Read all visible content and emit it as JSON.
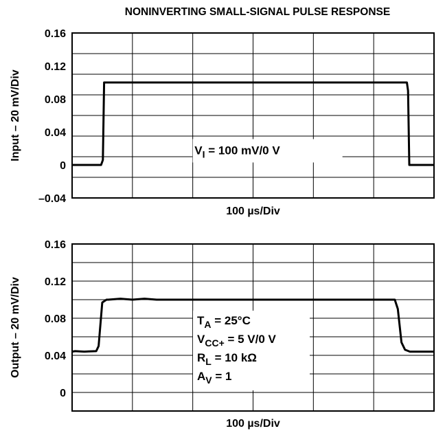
{
  "title": "NONINVERTING SMALL-SIGNAL PULSE RESPONSE",
  "chart_data": [
    {
      "type": "line",
      "name": "input",
      "ylabel": "Input – 20 mV/Div",
      "xlabel": "100 µs/Div",
      "xlim": [
        0,
        600
      ],
      "ylim": [
        -0.04,
        0.16
      ],
      "y_tick_labels": [
        "0.16",
        "0.12",
        "0.08",
        "0.04",
        "0",
        "–0.04"
      ],
      "y_tick_values": [
        0.16,
        0.12,
        0.08,
        0.04,
        0,
        -0.04
      ],
      "annotation": {
        "base": "V",
        "sub": "I",
        "rest": " = 100 mV/0 V"
      },
      "x": [
        0,
        48,
        51,
        53,
        555,
        557,
        559,
        600
      ],
      "y": [
        0,
        0,
        0.006,
        0.1,
        0.1,
        0.09,
        0,
        0
      ]
    },
    {
      "type": "line",
      "name": "output",
      "ylabel": "Output – 20 mV/Div",
      "xlabel": "100 µs/Div",
      "xlim": [
        0,
        600
      ],
      "ylim": [
        -0.02,
        0.16
      ],
      "y_tick_labels": [
        "0.16",
        "0.12",
        "0.08",
        "0.04",
        "0"
      ],
      "y_tick_values": [
        0.16,
        0.12,
        0.08,
        0.04,
        0
      ],
      "annotation_lines": [
        {
          "base": "T",
          "sub": "A",
          "rest": " = 25°C"
        },
        {
          "base": "V",
          "sub": "CC+",
          "rest": " = 5 V/0 V"
        },
        {
          "base": "R",
          "sub": "L",
          "rest": " = 10 kΩ"
        },
        {
          "base": "A",
          "sub": "V",
          "rest": " = 1"
        }
      ],
      "x": [
        0,
        5,
        20,
        40,
        44,
        50,
        57,
        60,
        80,
        100,
        120,
        140,
        200,
        300,
        400,
        535,
        540,
        546,
        552,
        560,
        600
      ],
      "y": [
        0.044,
        0.0445,
        0.044,
        0.0445,
        0.05,
        0.097,
        0.1,
        0.1,
        0.101,
        0.1,
        0.101,
        0.1,
        0.1,
        0.1,
        0.1,
        0.1,
        0.09,
        0.054,
        0.046,
        0.044,
        0.044
      ]
    }
  ]
}
